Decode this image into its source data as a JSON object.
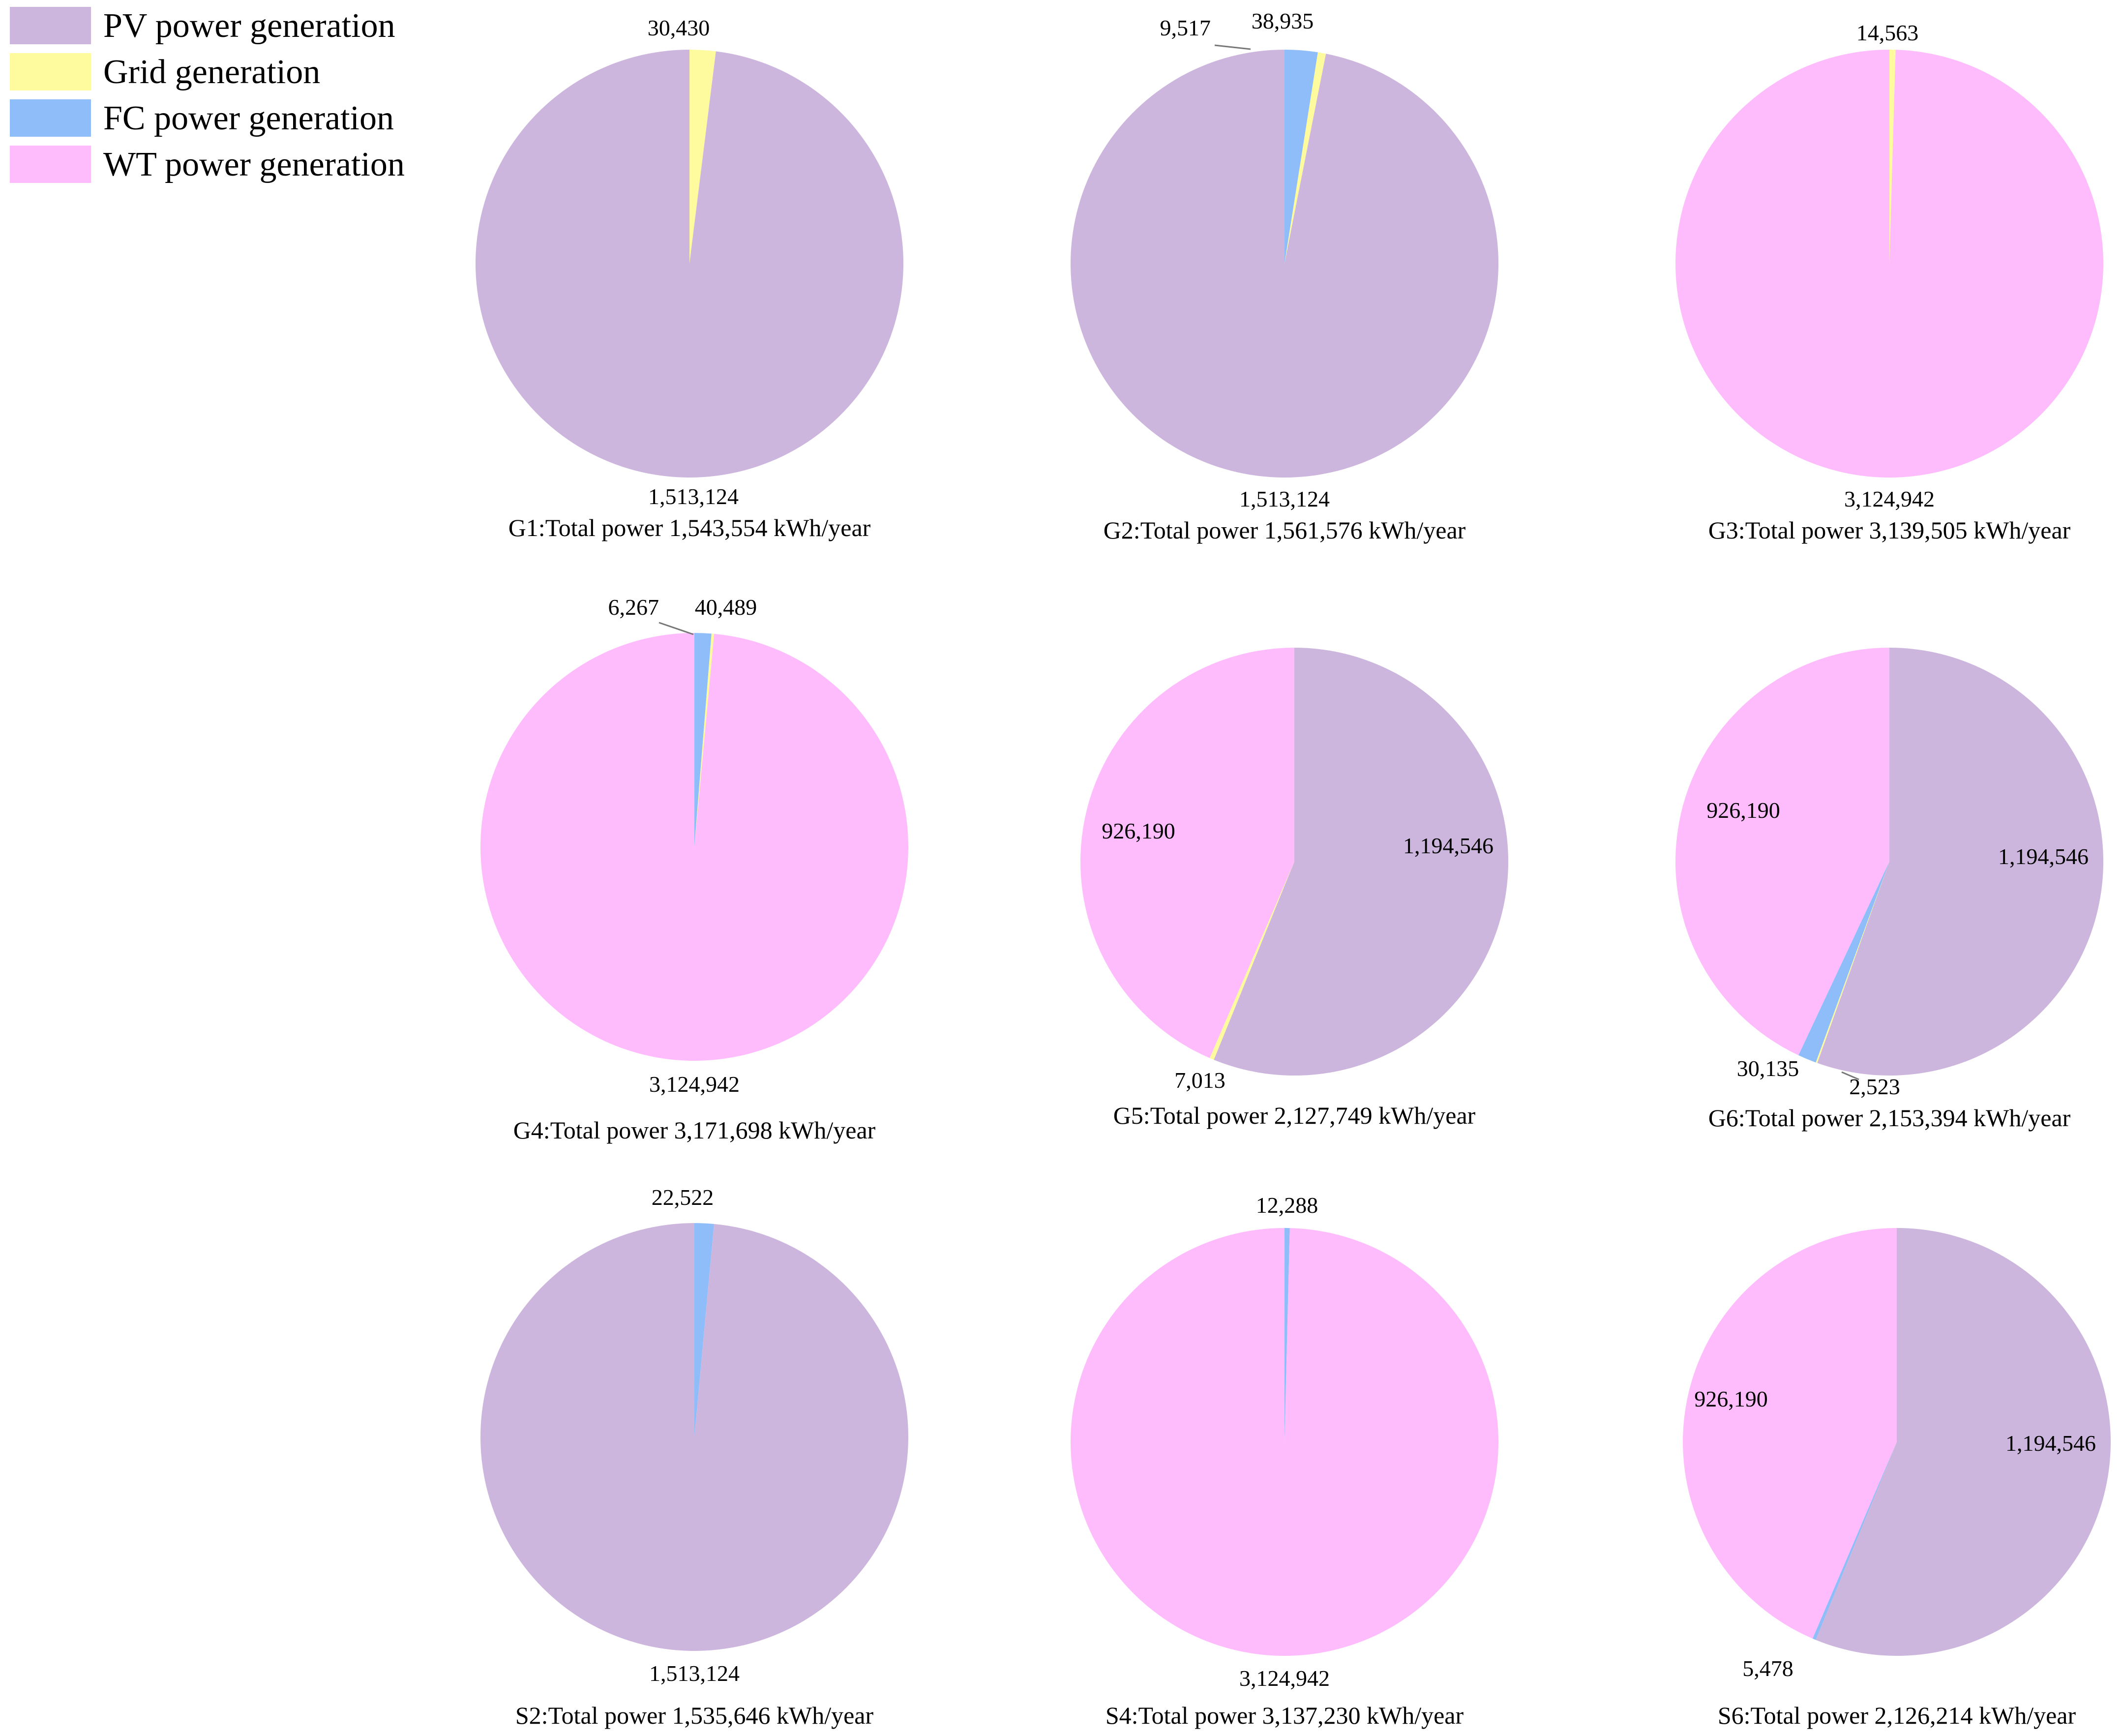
{
  "legend": [
    {
      "label": "PV power generation",
      "key": "pv"
    },
    {
      "label": "Grid generation",
      "key": "grid"
    },
    {
      "label": "FC power generation",
      "key": "fc"
    },
    {
      "label": "WT power generation",
      "key": "wt"
    }
  ],
  "colors": {
    "pv": "#cdb6dd",
    "grid": "#fdfb9e",
    "fc": "#8ebdfa",
    "wt": "#ffbcfd"
  },
  "chart_data": [
    {
      "type": "pie",
      "title": "G1:Total power 1,543,554 kWh/year",
      "slices": [
        {
          "key": "grid",
          "value": 30430,
          "label": "30,430"
        },
        {
          "key": "pv",
          "value": 1513124,
          "label": "1,513,124"
        }
      ]
    },
    {
      "type": "pie",
      "title": "G2:Total power 1,561,576 kWh/year",
      "slices": [
        {
          "key": "fc",
          "value": 38935,
          "label": "38,935"
        },
        {
          "key": "grid",
          "value": 9517,
          "label": "9,517"
        },
        {
          "key": "pv",
          "value": 1513124,
          "label": "1,513,124"
        }
      ]
    },
    {
      "type": "pie",
      "title": "G3:Total power 3,139,505 kWh/year",
      "slices": [
        {
          "key": "grid",
          "value": 14563,
          "label": "14,563"
        },
        {
          "key": "wt",
          "value": 3124942,
          "label": "3,124,942"
        }
      ]
    },
    {
      "type": "pie",
      "title": "G4:Total power 3,171,698 kWh/year",
      "slices": [
        {
          "key": "fc",
          "value": 40489,
          "label": "40,489"
        },
        {
          "key": "grid",
          "value": 6267,
          "label": "6,267"
        },
        {
          "key": "wt",
          "value": 3124942,
          "label": "3,124,942"
        }
      ]
    },
    {
      "type": "pie",
      "title": "G5:Total power 2,127,749 kWh/year",
      "slices": [
        {
          "key": "pv",
          "value": 1194546,
          "label": "1,194,546"
        },
        {
          "key": "grid",
          "value": 7013,
          "label": "7,013"
        },
        {
          "key": "wt",
          "value": 926190,
          "label": "926,190"
        }
      ]
    },
    {
      "type": "pie",
      "title": "G6:Total power 2,153,394 kWh/year",
      "slices": [
        {
          "key": "pv",
          "value": 1194546,
          "label": "1,194,546"
        },
        {
          "key": "grid",
          "value": 2523,
          "label": "2,523"
        },
        {
          "key": "fc",
          "value": 30135,
          "label": "30,135"
        },
        {
          "key": "wt",
          "value": 926190,
          "label": "926,190"
        }
      ]
    },
    {
      "type": "pie",
      "title": "S2:Total power 1,535,646 kWh/year",
      "slices": [
        {
          "key": "fc",
          "value": 22522,
          "label": "22,522"
        },
        {
          "key": "pv",
          "value": 1513124,
          "label": "1,513,124"
        }
      ]
    },
    {
      "type": "pie",
      "title": "S4:Total power 3,137,230 kWh/year",
      "slices": [
        {
          "key": "fc",
          "value": 12288,
          "label": "12,288"
        },
        {
          "key": "wt",
          "value": 3124942,
          "label": "3,124,942"
        }
      ]
    },
    {
      "type": "pie",
      "title": "S6:Total power 2,126,214 kWh/year",
      "slices": [
        {
          "key": "pv",
          "value": 1194546,
          "label": "1,194,546"
        },
        {
          "key": "fc",
          "value": 5478,
          "label": "5,478"
        },
        {
          "key": "wt",
          "value": 926190,
          "label": "926,190"
        }
      ]
    }
  ]
}
